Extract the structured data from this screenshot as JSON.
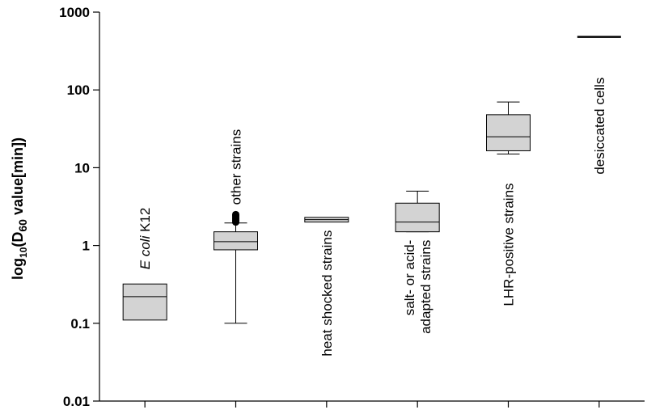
{
  "chart_data": {
    "type": "box",
    "scale": "log",
    "ylim": [
      0.01,
      1000
    ],
    "ylabel": {
      "prefix": "log",
      "base": "10",
      "open": "(D",
      "sub": "60",
      "rest": " value[min])"
    },
    "yticks": [
      {
        "value": 0.01,
        "label": "0.01"
      },
      {
        "value": 0.1,
        "label": "0.1"
      },
      {
        "value": 1,
        "label": "1"
      },
      {
        "value": 10,
        "label": "10"
      },
      {
        "value": 100,
        "label": "100"
      },
      {
        "value": 1000,
        "label": "1000"
      }
    ],
    "box_fill": "#d3d3d3",
    "categories": [
      {
        "label_italic": "E coli",
        "label_rest": " K12",
        "label_position": "above"
      },
      {
        "label": "other strains",
        "label_position": "above"
      },
      {
        "label": "heat shocked strains",
        "label_position": "below"
      },
      {
        "label_lines": [
          "salt- or acid-",
          "adapted strains"
        ],
        "label_position": "below"
      },
      {
        "label": "LHR-positive strains",
        "label_position": "below"
      },
      {
        "label": "desiccated cells",
        "label_position": "below"
      }
    ],
    "boxes": [
      {
        "category": "E coli K12",
        "q1": 0.11,
        "median": 0.22,
        "q3": 0.32
      },
      {
        "category": "other strains",
        "whisker_low": 0.1,
        "q1": 0.88,
        "median": 1.12,
        "q3": 1.5,
        "whisker_high": 1.95,
        "outliers": [
          2.0,
          2.1,
          2.2,
          2.3,
          2.4,
          2.5
        ]
      },
      {
        "category": "heat shocked strains",
        "q1": 2.0,
        "median": 2.15,
        "q3": 2.3
      },
      {
        "category": "salt- or acid-adapted strains",
        "whisker_low": 1.5,
        "q1": 1.5,
        "median": 2.0,
        "q3": 3.5,
        "whisker_high": 5.0
      },
      {
        "category": "LHR-positive strains",
        "whisker_low": 15,
        "q1": 16.5,
        "median": 25,
        "q3": 48,
        "whisker_high": 70
      },
      {
        "category": "desiccated cells",
        "median": 480
      }
    ]
  }
}
